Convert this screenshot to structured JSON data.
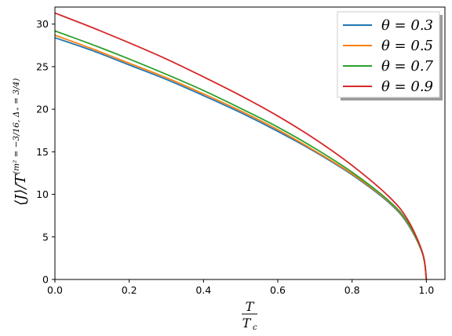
{
  "chart_data": {
    "type": "line",
    "xlabel": {
      "numerator": "T",
      "denominator": "T",
      "denominator_sub": "c"
    },
    "ylabel": {
      "main": "⟨J⟩/T",
      "exponent": "(m² = −3/16, Δ₊ = 3/4)"
    },
    "xlim": [
      0.0,
      1.05
    ],
    "ylim": [
      0,
      32
    ],
    "xticks": [
      0.0,
      0.2,
      0.4,
      0.6,
      0.8,
      1.0
    ],
    "xtick_labels": [
      "0.0",
      "0.2",
      "0.4",
      "0.6",
      "0.8",
      "1.0"
    ],
    "yticks": [
      0,
      5,
      10,
      15,
      20,
      25,
      30
    ],
    "ytick_labels": [
      "0",
      "5",
      "10",
      "15",
      "20",
      "25",
      "30"
    ],
    "grid": false,
    "legend_position": "top-right",
    "x": [
      0.0,
      0.1,
      0.2,
      0.3,
      0.4,
      0.5,
      0.6,
      0.7,
      0.8,
      0.9,
      0.95,
      0.99,
      1.0
    ],
    "series": [
      {
        "name": "θ = 0.3",
        "label_text": "θ = 0.3",
        "color": "#1f77b4",
        "values": [
          28.4,
          26.9,
          25.2,
          23.5,
          21.6,
          19.6,
          17.4,
          15.0,
          12.3,
          9.0,
          6.5,
          3.0,
          0.0
        ]
      },
      {
        "name": "θ = 0.5",
        "label_text": "θ = 0.5",
        "color": "#ff7f0e",
        "values": [
          28.7,
          27.1,
          25.4,
          23.7,
          21.8,
          19.8,
          17.6,
          15.1,
          12.4,
          9.1,
          6.6,
          3.0,
          0.0
        ]
      },
      {
        "name": "θ = 0.7",
        "label_text": "θ = 0.7",
        "color": "#2ca02c",
        "values": [
          29.2,
          27.6,
          25.9,
          24.1,
          22.2,
          20.1,
          17.9,
          15.4,
          12.6,
          9.2,
          6.7,
          3.0,
          0.0
        ]
      },
      {
        "name": "θ = 0.9",
        "label_text": "θ = 0.9",
        "color": "#d62728",
        "values": [
          31.3,
          29.6,
          27.8,
          25.9,
          23.8,
          21.6,
          19.2,
          16.5,
          13.4,
          9.7,
          7.0,
          3.1,
          0.0
        ]
      }
    ]
  }
}
